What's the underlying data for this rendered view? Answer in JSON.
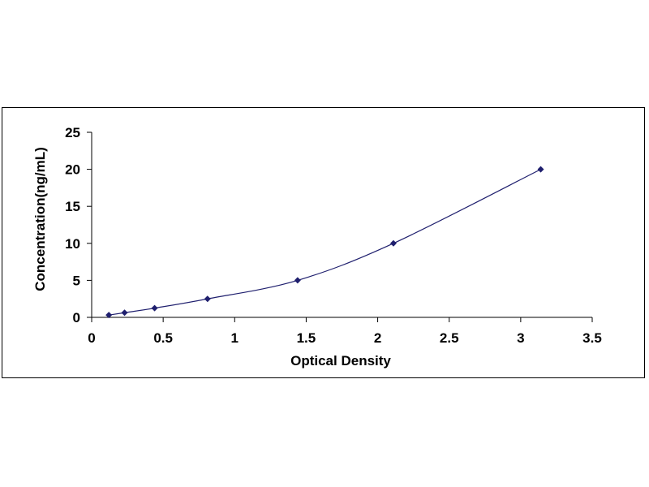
{
  "chart_data": {
    "type": "scatter",
    "title": "",
    "xlabel": "Optical Density",
    "ylabel": "Concentration(ng/mL)",
    "xlim": [
      0,
      3.5
    ],
    "ylim": [
      0,
      25
    ],
    "xticks": [
      "0",
      "0.5",
      "1",
      "1.5",
      "2",
      "2.5",
      "3",
      "3.5"
    ],
    "yticks": [
      "0",
      "5",
      "10",
      "15",
      "20",
      "25"
    ],
    "grid": false,
    "legend": "none",
    "series": [
      {
        "x": [
          0.12,
          0.23,
          0.44,
          0.81,
          1.44,
          2.11,
          3.14
        ],
        "y": [
          0.31,
          0.63,
          1.25,
          2.5,
          5,
          10,
          20
        ],
        "marker": "diamond",
        "color": "#1f1f6e",
        "line": "smooth"
      }
    ]
  }
}
